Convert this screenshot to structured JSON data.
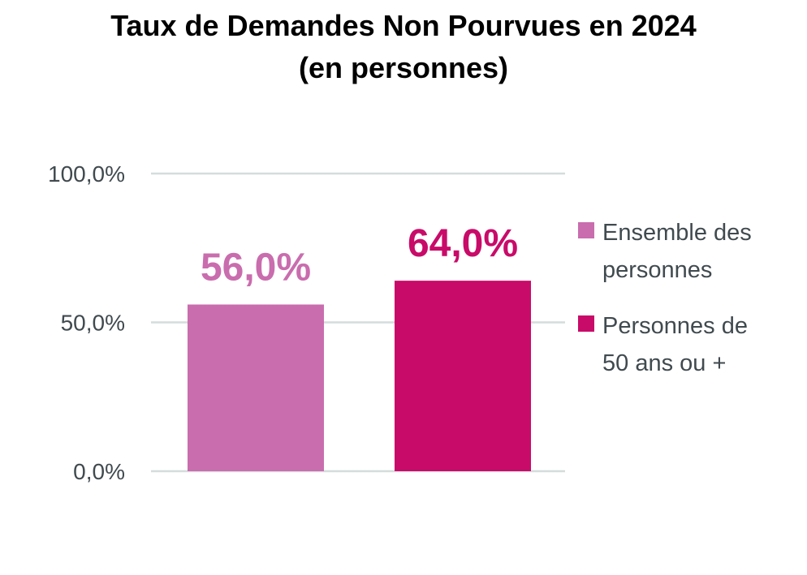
{
  "chart_data": {
    "type": "bar",
    "title": "Taux de Demandes Non Pourvues en 2024",
    "subtitle": "(en personnes)",
    "categories": [
      "Ensemble des personnes",
      "Personnes de 50 ans ou +"
    ],
    "values": [
      56.0,
      64.0
    ],
    "value_labels": [
      "56,0%",
      "64,0%"
    ],
    "legend": [
      {
        "lines": [
          "Ensemble des",
          "personnes"
        ],
        "color": "#c96dae"
      },
      {
        "lines": [
          "Personnes de",
          "50 ans ou +"
        ],
        "color": "#c80b69"
      }
    ],
    "colors": [
      "#c96dae",
      "#c80b69"
    ],
    "ylim": [
      0,
      100
    ],
    "yticks": [
      0,
      50,
      100
    ],
    "ytick_labels": [
      "0,0%",
      "50,0%",
      "100,0%"
    ],
    "grid": true,
    "legend_position": "right",
    "xlabel": "",
    "ylabel": ""
  }
}
